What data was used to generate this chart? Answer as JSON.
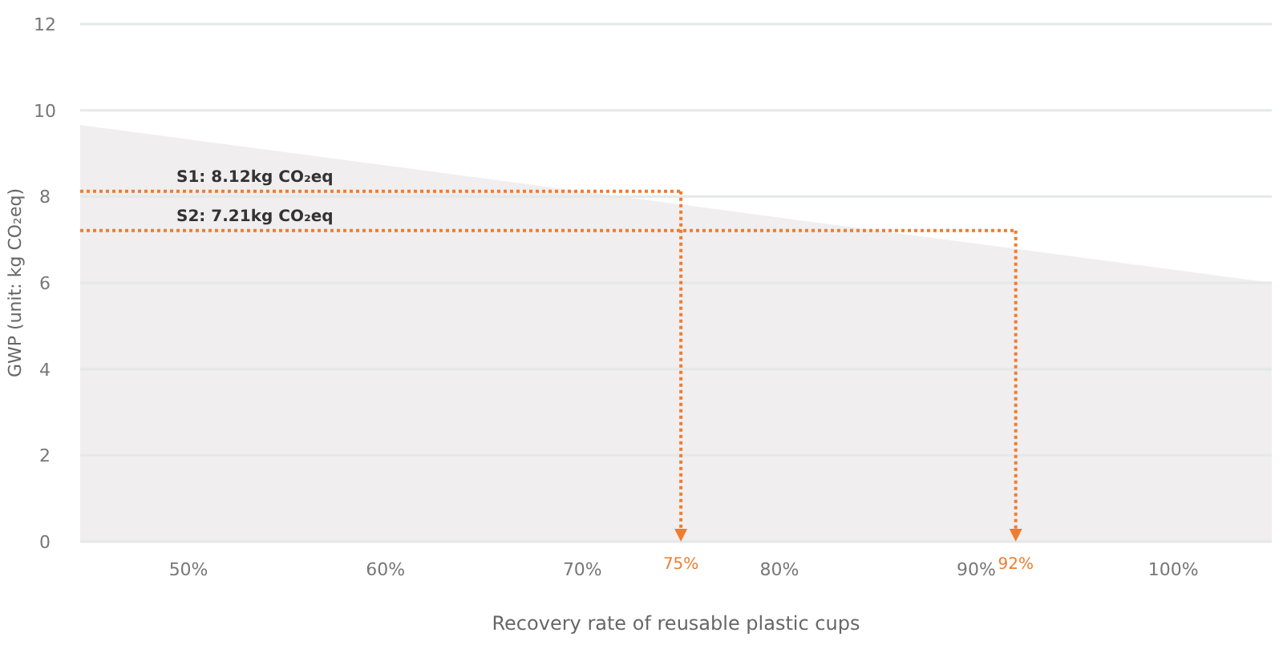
{
  "chart_data": {
    "type": "area",
    "xlabel": "Recovery rate of reusable plastic cups",
    "ylabel": "GWP (unit: kg CO₂eq)",
    "xlim": [
      44.5,
      105
    ],
    "ylim": [
      0,
      12
    ],
    "xticks": [
      {
        "value": 50,
        "label": "50%"
      },
      {
        "value": 60,
        "label": "60%"
      },
      {
        "value": 70,
        "label": "70%"
      },
      {
        "value": 80,
        "label": "80%"
      },
      {
        "value": 90,
        "label": "90%"
      },
      {
        "value": 100,
        "label": "100%"
      }
    ],
    "yticks": [
      0,
      2,
      4,
      6,
      8,
      10,
      12
    ],
    "grid": "y",
    "series": [
      {
        "color": "#f0eeee",
        "x": [
          44.5,
          105
        ],
        "values": [
          9.66,
          6.0
        ]
      }
    ],
    "ref_lines": [
      {
        "axis": "y",
        "value": 8.12,
        "label": "S1: 8.12kg CO₂eq",
        "color": "#ed7d31",
        "line_style": "dotted"
      },
      {
        "axis": "y",
        "value": 7.21,
        "label": "S2: 7.21kg CO₂eq",
        "color": "#ed7d31",
        "line_style": "dotted"
      },
      {
        "axis": "x",
        "value": 75,
        "label": "75%",
        "color": "#ed7d31",
        "line_style": "dotted"
      },
      {
        "axis": "x",
        "value": 92,
        "label": "92%",
        "color": "#ed7d31",
        "line_style": "dotted"
      }
    ]
  }
}
